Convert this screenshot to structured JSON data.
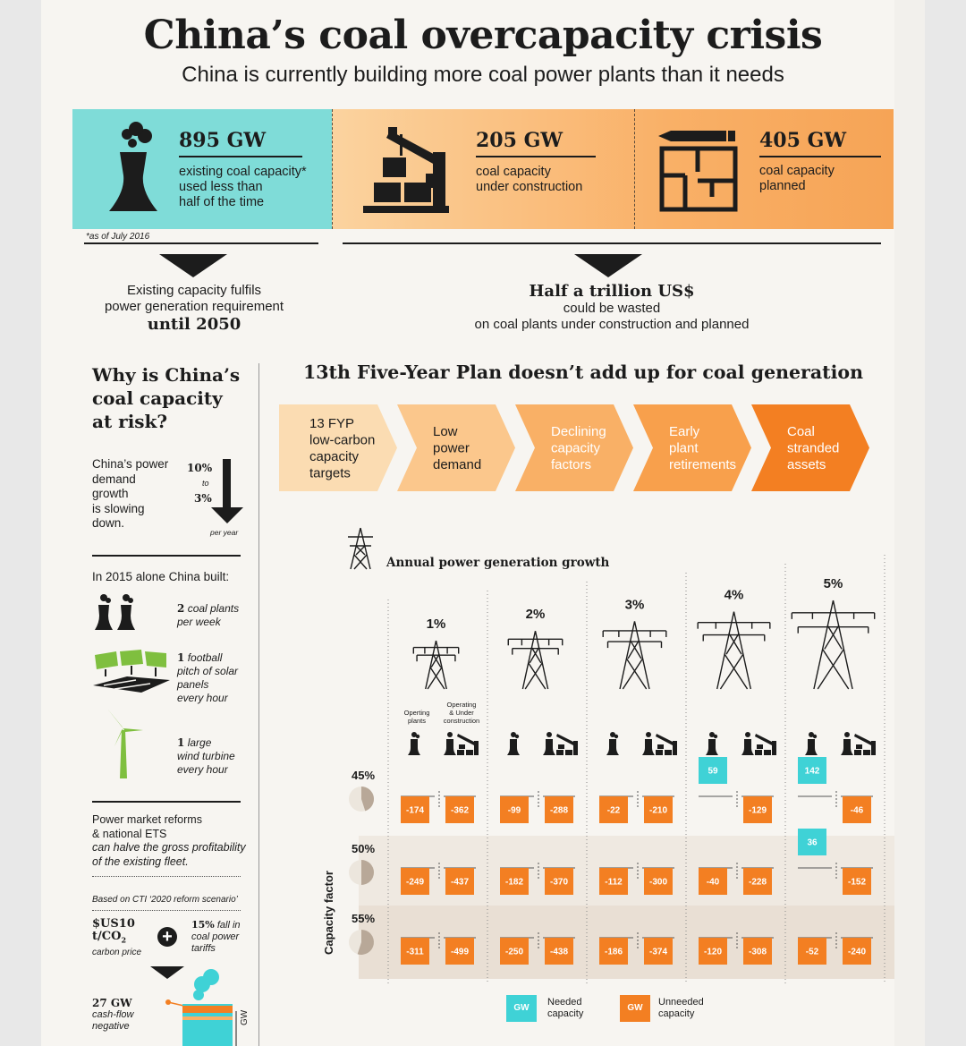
{
  "header": {
    "title": "China’s coal overcapacity crisis",
    "subtitle": "China is currently building more coal power plants than it needs"
  },
  "stats": [
    {
      "value": "895 GW",
      "desc1": "existing coal capacity*",
      "desc2": "used less than",
      "desc3": "half of the time"
    },
    {
      "value": "205 GW",
      "desc1": "coal capacity",
      "desc2": "under construction"
    },
    {
      "value": "405 GW",
      "desc1": "coal capacity",
      "desc2": "planned"
    }
  ],
  "footnote": "*as of July 2016",
  "conclusions": {
    "left": {
      "line1": "Existing capacity fulfils",
      "line2": "power generation requirement",
      "line3": "until 2050"
    },
    "right": {
      "line1": "Half a trillion US$",
      "line2": "could be wasted",
      "line3": "on coal plants under construction and planned"
    }
  },
  "sidebar": {
    "heading1": "Why is China’s",
    "heading2": "coal capacity",
    "heading3": "at risk?",
    "demand": {
      "l1": "China’s power",
      "l2": "demand",
      "l3": "growth",
      "l4": "is slowing",
      "l5": "down.",
      "from": "10%",
      "to_word": "to",
      "to": "3%",
      "unit": "per year"
    },
    "built_title": "In 2015 alone China built:",
    "built": [
      {
        "num": "2",
        "l1": "coal plants",
        "l2": "per week"
      },
      {
        "num": "1",
        "l1": "football",
        "l2": "pitch of solar",
        "l3": "panels",
        "l4": "every hour"
      },
      {
        "num": "1",
        "l1": "large",
        "l2": "wind turbine",
        "l3": "every hour"
      }
    ],
    "reform": {
      "l1": "Power market reforms",
      "l2": "& national ETS",
      "l3": "can halve the gross profitability",
      "l4": "of the existing fleet."
    },
    "based": "Based on CTI ‘2020 reform scenario’",
    "carbon": {
      "l1": "$US10",
      "l2": "t/CO",
      "sub": "2",
      "l3": "carbon price"
    },
    "tariff": {
      "pct": "15%",
      "l1": "fall in",
      "l2": "coal power",
      "l3": "tariffs"
    },
    "plus": "+",
    "cashflow": {
      "value": "27 GW",
      "l1": "cash-flow",
      "l2": "negative"
    },
    "axis_unit": "GW"
  },
  "main": {
    "heading": "13th Five-Year Plan doesn’t add up for coal generation",
    "steps": [
      {
        "lines": [
          "13 FYP",
          "low-carbon",
          "capacity",
          "targets"
        ],
        "fill": "#fbdcb2",
        "text": "#1c1c1c"
      },
      {
        "lines": [
          "Low",
          "power",
          "demand"
        ],
        "fill": "#fbc78c",
        "text": "#1c1c1c"
      },
      {
        "lines": [
          "Declining",
          "capacity",
          "factors"
        ],
        "fill": "#f9b066",
        "text": "#ffffff"
      },
      {
        "lines": [
          "Early",
          "plant",
          "retirements"
        ],
        "fill": "#f8a04c",
        "text": "#ffffff"
      },
      {
        "lines": [
          "Coal",
          "stranded",
          "assets"
        ],
        "fill": "#f37f22",
        "text": "#ffffff"
      }
    ],
    "growth_label": "Annual power generation growth",
    "col_labels": {
      "operating": [
        "Operting",
        "plants"
      ],
      "construction": [
        "Operating",
        "& Under",
        "construction"
      ]
    }
  },
  "chart_data": {
    "type": "bar",
    "title": "Annual power generation growth",
    "unit": "GW",
    "ylabel": "Capacity factor",
    "categories": [
      "1%",
      "2%",
      "3%",
      "4%",
      "5%"
    ],
    "pair_labels": [
      "Operting plants",
      "Operating & Under construction"
    ],
    "rows": [
      {
        "capacity_factor": "45%",
        "operating": [
          -174,
          -99,
          -22,
          59,
          142
        ],
        "under_construction": [
          -362,
          -288,
          -210,
          -129,
          -46
        ]
      },
      {
        "capacity_factor": "50%",
        "operating": [
          -249,
          -182,
          -112,
          -40,
          36
        ],
        "under_construction": [
          -437,
          -370,
          -300,
          -228,
          -152
        ]
      },
      {
        "capacity_factor": "55%",
        "operating": [
          -311,
          -250,
          -186,
          -120,
          -52
        ],
        "under_construction": [
          -499,
          -438,
          -374,
          -308,
          -240
        ]
      }
    ],
    "colors": {
      "needed": "#3fd2d6",
      "unneeded": "#f37f22"
    },
    "legend": [
      {
        "key": "needed",
        "swatch": "GW",
        "l1": "Needed",
        "l2": "capacity"
      },
      {
        "key": "unneeded",
        "swatch": "GW",
        "l1": "Unneeded",
        "l2": "capacity"
      }
    ]
  }
}
